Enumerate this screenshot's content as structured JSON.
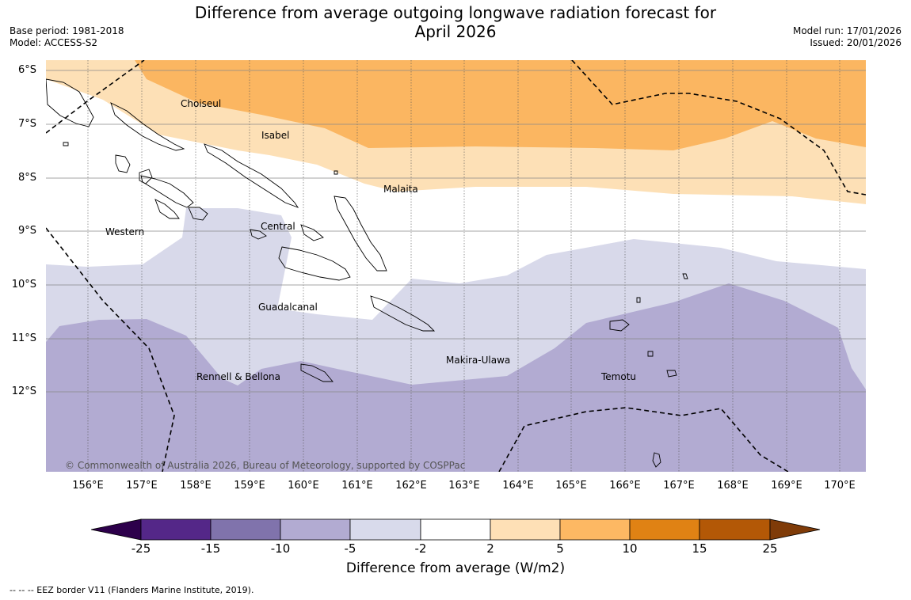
{
  "title": {
    "line1": "Difference from average outgoing longwave radiation forecast for",
    "line2": "April 2026"
  },
  "meta_left": {
    "base_period": "Base period: 1981-2018",
    "model": "Model: ACCESS-S2"
  },
  "meta_right": {
    "model_run": "Model run: 17/01/2026",
    "issued": "Issued: 20/01/2026"
  },
  "map": {
    "y_ticks": [
      "6°S",
      "7°S",
      "8°S",
      "9°S",
      "10°S",
      "11°S",
      "12°S"
    ],
    "x_ticks": [
      "156°E",
      "157°E",
      "158°E",
      "159°E",
      "160°E",
      "161°E",
      "162°E",
      "163°E",
      "164°E",
      "165°E",
      "166°E",
      "167°E",
      "168°E",
      "169°E",
      "170°E"
    ],
    "regions": {
      "choiseul": "Choiseul",
      "isabel": "Isabel",
      "malaita": "Malaita",
      "western": "Western",
      "central": "Central",
      "guadalcanal": "Guadalcanal",
      "makira": "Makira-Ulawa",
      "rennell": "Rennell & Bellona",
      "temotu": "Temotu"
    },
    "copyright": "© Commonwealth of Australia 2026, Bureau of Meteorology, supported by COSPPac",
    "colors": {
      "orange_light": "#fde0b6",
      "orange_mid": "#fbb661",
      "purple_light": "#d8d9ea",
      "purple_mid": "#b2abd2"
    }
  },
  "colorbar": {
    "ticks": [
      "-25",
      "-15",
      "-10",
      "-5",
      "-2",
      "2",
      "5",
      "10",
      "15",
      "25"
    ],
    "colors": [
      "#2d004b",
      "#542788",
      "#8073ac",
      "#b2abd2",
      "#d8daeb",
      "#ffffff",
      "#fee0b6",
      "#fdb863",
      "#e08214",
      "#b35806",
      "#7f3b08"
    ],
    "label": "Difference from average (W/m2)"
  },
  "footer": "--  --  -- EEZ border V11 (Flanders Marine Institute, 2019)."
}
